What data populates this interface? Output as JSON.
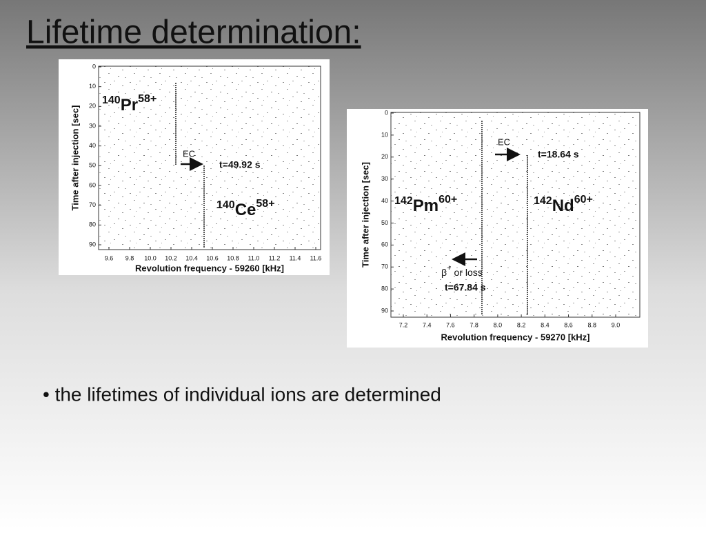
{
  "title": "Lifetime determination:",
  "figures": [
    {
      "y_label": "Time after injection [sec]",
      "x_label": "Revolution frequency - 59260 [kHz]",
      "yticks": [
        "0",
        "10",
        "20",
        "30",
        "40",
        "50",
        "60",
        "70",
        "80",
        "90"
      ],
      "xticks": [
        "9.6",
        "9.8",
        "10.0",
        "10.2",
        "10.4",
        "10.6",
        "10.8",
        "11.0",
        "11.2",
        "11.4",
        "11.6"
      ],
      "ions": [
        {
          "mass": "140",
          "element": "Pr",
          "charge": "58+"
        },
        {
          "mass": "140",
          "element": "Ce",
          "charge": "58+"
        }
      ],
      "decay": "EC",
      "time": "t=49.92 s"
    },
    {
      "y_label": "Time after injection [sec]",
      "x_label": "Revolution frequency - 59270 [kHz]",
      "yticks": [
        "0",
        "10",
        "20",
        "30",
        "40",
        "50",
        "60",
        "70",
        "80",
        "90"
      ],
      "xticks": [
        "7.2",
        "7.4",
        "7.6",
        "7.8",
        "8.0",
        "8.2",
        "8.4",
        "8.6",
        "8.8",
        "9.0"
      ],
      "ions": [
        {
          "mass": "142",
          "element": "Pm",
          "charge": "60+"
        },
        {
          "mass": "142",
          "element": "Nd",
          "charge": "60+"
        }
      ],
      "decay": "EC",
      "time": "t=18.64 s",
      "loss": {
        "symbol": "β",
        "charge": "+",
        "text": "or loss"
      },
      "loss_time": "t=67.84 s"
    }
  ],
  "bullet": "• the lifetimes of individual ions are determined"
}
